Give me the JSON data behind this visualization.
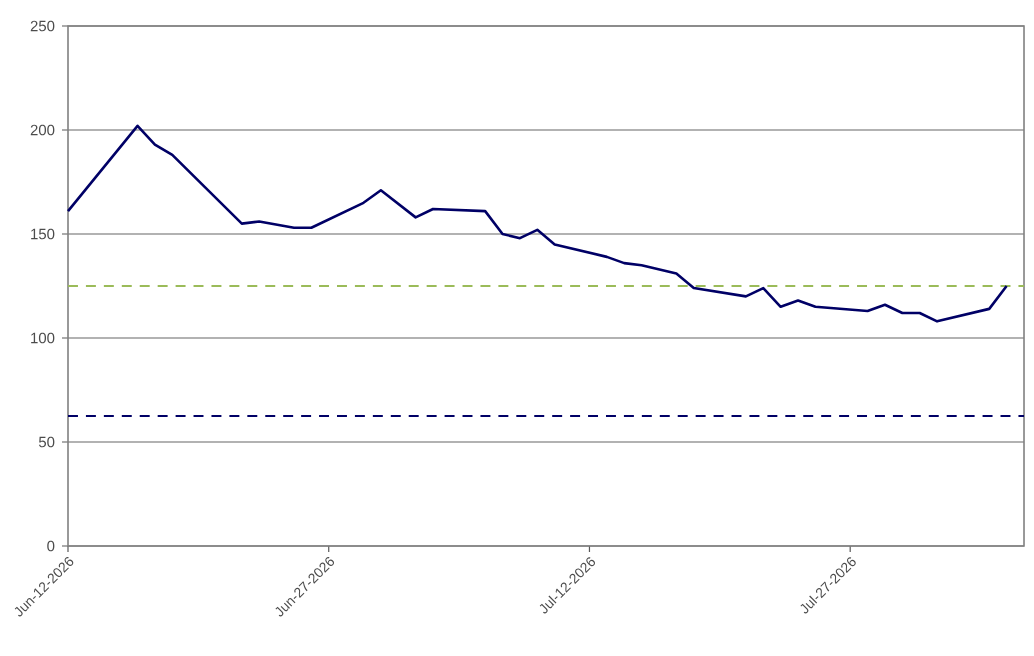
{
  "chart_data": {
    "type": "line",
    "x": [
      "2026-06-12",
      "2026-06-16",
      "2026-06-17",
      "2026-06-18",
      "2026-06-22",
      "2026-06-23",
      "2026-06-25",
      "2026-06-26",
      "2026-06-29",
      "2026-06-30",
      "2026-07-02",
      "2026-07-03",
      "2026-07-06",
      "2026-07-07",
      "2026-07-08",
      "2026-07-09",
      "2026-07-10",
      "2026-07-13",
      "2026-07-14",
      "2026-07-15",
      "2026-07-17",
      "2026-07-18",
      "2026-07-21",
      "2026-07-22",
      "2026-07-23",
      "2026-07-24",
      "2026-07-25",
      "2026-07-28",
      "2026-07-29",
      "2026-07-30",
      "2026-07-31",
      "2026-08-01",
      "2026-08-04",
      "2026-08-05"
    ],
    "series": [
      {
        "color": "#000066",
        "values": [
          161,
          202,
          193,
          188,
          155,
          156,
          153,
          153,
          165,
          171,
          158,
          162,
          161,
          150,
          148,
          152,
          145,
          139,
          136,
          135,
          131,
          124,
          120,
          124,
          115,
          118,
          115,
          113,
          116,
          112,
          112,
          108,
          114,
          125
        ]
      }
    ],
    "xlim": [
      "2026-06-12",
      "2026-08-06"
    ],
    "xticks": [
      {
        "value": "2026-06-12",
        "label": "Jun-12-2026"
      },
      {
        "value": "2026-06-27",
        "label": "Jun-27-2026"
      },
      {
        "value": "2026-07-12",
        "label": "Jul-12-2026"
      },
      {
        "value": "2026-07-27",
        "label": "Jul-27-2026"
      }
    ],
    "ylim": [
      0,
      250
    ],
    "yticks": [
      0,
      50,
      100,
      150,
      200,
      250
    ],
    "grid": "y",
    "ref_lines": [
      {
        "axis": "y",
        "value": 125,
        "color": "#9bbb59",
        "line_style": "dashed"
      },
      {
        "axis": "y",
        "value": 62.5,
        "color": "#000066",
        "line_style": "dashed"
      }
    ]
  }
}
